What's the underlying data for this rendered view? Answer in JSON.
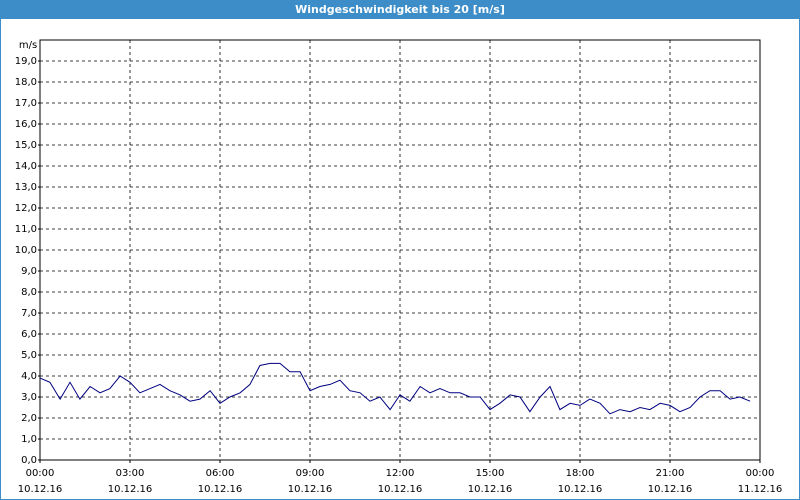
{
  "chart_data": {
    "type": "line",
    "title": "Windgeschwindigkeit bis 20 [m/s]",
    "y_label": "m/s",
    "x": [
      0,
      0.33,
      0.67,
      1,
      1.33,
      1.67,
      2,
      2.33,
      2.67,
      3,
      3.33,
      3.67,
      4,
      4.33,
      4.67,
      5,
      5.33,
      5.67,
      6,
      6.33,
      6.67,
      7,
      7.33,
      7.67,
      8,
      8.33,
      8.67,
      9,
      9.33,
      9.67,
      10,
      10.33,
      10.67,
      11,
      11.33,
      11.67,
      12,
      12.33,
      12.67,
      13,
      13.33,
      13.67,
      14,
      14.33,
      14.67,
      15,
      15.33,
      15.67,
      16,
      16.33,
      16.67,
      17,
      17.33,
      17.67,
      18,
      18.33,
      18.67,
      19,
      19.33,
      19.67,
      20,
      20.33,
      20.67,
      21,
      21.33,
      21.67,
      22,
      22.33,
      22.67,
      23,
      23.33,
      23.67
    ],
    "series": [
      {
        "color": "#000080",
        "values": [
          3.9,
          3.7,
          2.9,
          3.7,
          2.9,
          3.5,
          3.2,
          3.4,
          4.0,
          3.7,
          3.2,
          3.4,
          3.6,
          3.3,
          3.1,
          2.8,
          2.9,
          3.3,
          2.7,
          3.0,
          3.2,
          3.6,
          4.5,
          4.6,
          4.6,
          4.2,
          4.2,
          3.3,
          3.5,
          3.6,
          3.8,
          3.3,
          3.2,
          2.8,
          3.0,
          2.4,
          3.1,
          2.8,
          3.5,
          3.2,
          3.4,
          3.2,
          3.2,
          3.0,
          3.0,
          2.4,
          2.7,
          3.1,
          3.0,
          2.3,
          3.0,
          3.5,
          2.4,
          2.7,
          2.6,
          2.9,
          2.7,
          2.2,
          2.4,
          2.3,
          2.5,
          2.4,
          2.7,
          2.6,
          2.3,
          2.5,
          3.0,
          3.3,
          3.3,
          2.9,
          3.0,
          2.8
        ]
      }
    ],
    "xlim": [
      0,
      24
    ],
    "xticks": [
      {
        "value": 0,
        "label": "00:00"
      },
      {
        "value": 3,
        "label": "03:00"
      },
      {
        "value": 6,
        "label": "06:00"
      },
      {
        "value": 9,
        "label": "09:00"
      },
      {
        "value": 12,
        "label": "12:00"
      },
      {
        "value": 15,
        "label": "15:00"
      },
      {
        "value": 18,
        "label": "18:00"
      },
      {
        "value": 21,
        "label": "21:00"
      },
      {
        "value": 24,
        "label": "00:00"
      }
    ],
    "xtick_dates": [
      "10.12.16",
      "10.12.16",
      "10.12.16",
      "10.12.16",
      "10.12.16",
      "10.12.16",
      "10.12.16",
      "10.12.16",
      "11.12.16"
    ],
    "ylim": [
      0,
      20
    ],
    "yticks": [
      {
        "value": 0,
        "label": "0,0"
      },
      {
        "value": 1,
        "label": "1,0"
      },
      {
        "value": 2,
        "label": "2,0"
      },
      {
        "value": 3,
        "label": "3,0"
      },
      {
        "value": 4,
        "label": "4,0"
      },
      {
        "value": 5,
        "label": "5,0"
      },
      {
        "value": 6,
        "label": "6,0"
      },
      {
        "value": 7,
        "label": "7,0"
      },
      {
        "value": 8,
        "label": "8,0"
      },
      {
        "value": 9,
        "label": "9,0"
      },
      {
        "value": 10,
        "label": "10,0"
      },
      {
        "value": 11,
        "label": "11,0"
      },
      {
        "value": 12,
        "label": "12,0"
      },
      {
        "value": 13,
        "label": "13,0"
      },
      {
        "value": 14,
        "label": "14,0"
      },
      {
        "value": 15,
        "label": "15,0"
      },
      {
        "value": 16,
        "label": "16,0"
      },
      {
        "value": 17,
        "label": "17,0"
      },
      {
        "value": 18,
        "label": "18,0"
      },
      {
        "value": 19,
        "label": "19,0"
      }
    ],
    "grid": true
  }
}
